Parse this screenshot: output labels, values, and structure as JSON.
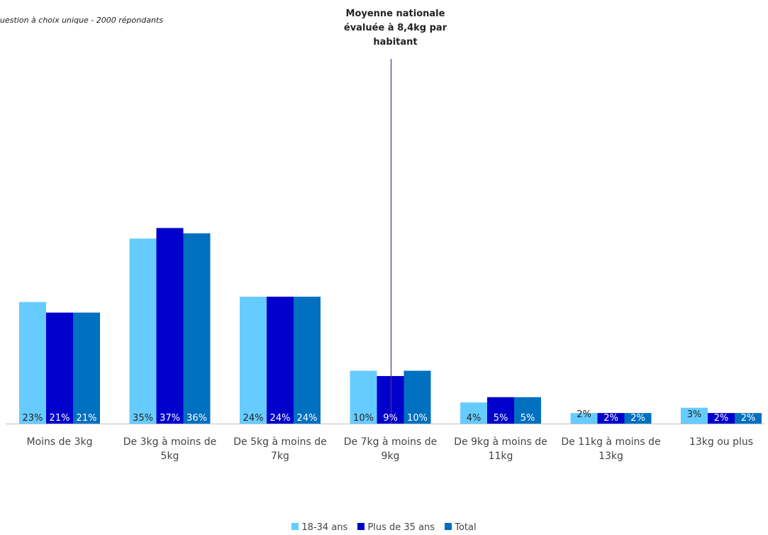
{
  "subtitle": "uestion à choix unique - 2000 répondants",
  "annotation": {
    "lines": [
      "Moyenne nationale",
      "évaluée à 8,4kg par",
      "habitant"
    ],
    "x_value": 8.4
  },
  "colors": {
    "18-34 ans": "#66CCFF",
    "Plus de 35 ans": "#0000CC",
    "Total": "#0070C0",
    "label_dark": "#222222",
    "label_light": "#ffffff",
    "annotation_line": "#5B2C8C",
    "axis": "#BFBFBF"
  },
  "chart_data": {
    "type": "bar",
    "categories": [
      [
        "Moins de 3kg"
      ],
      [
        "De 3kg à moins de",
        "5kg"
      ],
      [
        "De 5kg à moins de",
        "7kg"
      ],
      [
        "De 7kg à moins de",
        "9kg"
      ],
      [
        "De 9kg à moins de",
        "11kg"
      ],
      [
        "De 11kg à moins de",
        "13kg"
      ],
      [
        "13kg ou plus"
      ]
    ],
    "series": [
      {
        "name": "18-34 ans",
        "values": [
          23,
          35,
          24,
          10,
          4,
          2,
          3
        ]
      },
      {
        "name": "Plus de 35 ans",
        "values": [
          21,
          37,
          24,
          9,
          5,
          2,
          2
        ]
      },
      {
        "name": "Total",
        "values": [
          21,
          36,
          24,
          10,
          5,
          2,
          2
        ]
      }
    ],
    "value_suffix": "%",
    "ylim": [
      0,
      40
    ],
    "grid": false,
    "legend_position": "bottom"
  }
}
